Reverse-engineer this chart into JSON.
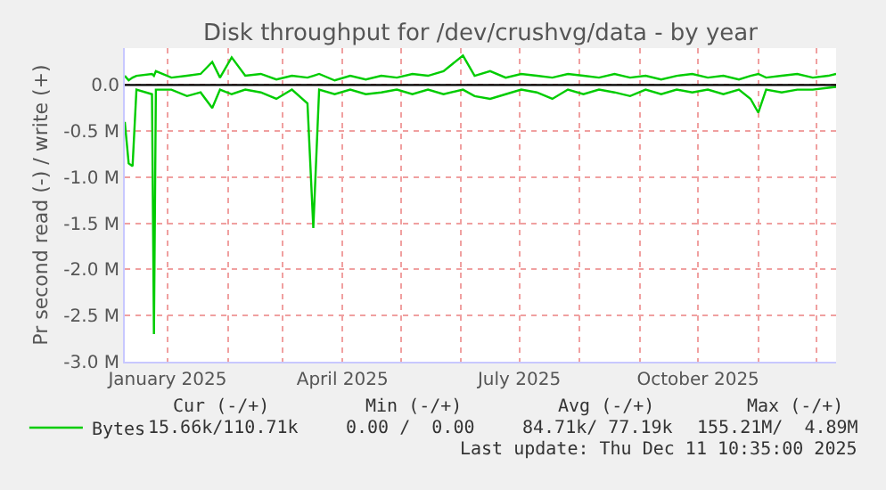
{
  "chart_data": {
    "type": "line",
    "title": "Disk throughput for /dev/crushvg/data - by year",
    "ylabel": "Pr second read (-) / write (+)",
    "x": [
      "2024-12-10",
      "2024-12-12",
      "2024-12-14",
      "2024-12-16",
      "2024-12-24",
      "2024-12-25",
      "2024-12-26",
      "2025-01-03",
      "2025-01-11",
      "2025-01-18",
      "2025-01-24",
      "2025-01-28",
      "2025-02-03",
      "2025-02-10",
      "2025-02-18",
      "2025-02-26",
      "2025-03-06",
      "2025-03-14",
      "2025-03-17",
      "2025-03-20",
      "2025-03-28",
      "2025-04-05",
      "2025-04-13",
      "2025-04-21",
      "2025-04-29",
      "2025-05-07",
      "2025-05-15",
      "2025-05-23",
      "2025-06-02",
      "2025-06-08",
      "2025-06-16",
      "2025-06-24",
      "2025-07-02",
      "2025-07-10",
      "2025-07-18",
      "2025-07-26",
      "2025-08-03",
      "2025-08-11",
      "2025-08-19",
      "2025-08-27",
      "2025-09-04",
      "2025-09-12",
      "2025-09-20",
      "2025-09-28",
      "2025-10-06",
      "2025-10-14",
      "2025-10-22",
      "2025-10-28",
      "2025-11-01",
      "2025-11-05",
      "2025-11-13",
      "2025-11-21",
      "2025-11-29",
      "2025-12-07",
      "2025-12-11"
    ],
    "series": [
      {
        "color": "#00cc00",
        "values": [
          -0.4,
          -0.85,
          -0.88,
          -0.05,
          -0.1,
          -2.7,
          -0.05,
          -0.05,
          -0.12,
          -0.08,
          -0.25,
          -0.05,
          -0.1,
          -0.05,
          -0.08,
          -0.15,
          -0.05,
          -0.2,
          -1.55,
          -0.05,
          -0.1,
          -0.05,
          -0.1,
          -0.08,
          -0.05,
          -0.1,
          -0.05,
          -0.1,
          -0.05,
          -0.12,
          -0.15,
          -0.1,
          -0.05,
          -0.08,
          -0.15,
          -0.05,
          -0.1,
          -0.05,
          -0.08,
          -0.12,
          -0.05,
          -0.1,
          -0.05,
          -0.08,
          -0.05,
          -0.1,
          -0.05,
          -0.15,
          -0.3,
          -0.05,
          -0.08,
          -0.05,
          -0.05,
          -0.03,
          -0.02
        ]
      },
      {
        "name": "Bytes",
        "color": "#00cc00",
        "values": [
          0.1,
          0.05,
          0.08,
          0.1,
          0.12,
          0.1,
          0.15,
          0.08,
          0.1,
          0.12,
          0.25,
          0.08,
          0.3,
          0.1,
          0.12,
          0.06,
          0.1,
          0.08,
          0.1,
          0.12,
          0.05,
          0.1,
          0.06,
          0.1,
          0.08,
          0.12,
          0.1,
          0.15,
          0.32,
          0.1,
          0.15,
          0.08,
          0.12,
          0.1,
          0.08,
          0.12,
          0.1,
          0.08,
          0.12,
          0.08,
          0.1,
          0.06,
          0.1,
          0.12,
          0.08,
          0.1,
          0.06,
          0.1,
          0.12,
          0.08,
          0.1,
          0.12,
          0.08,
          0.1,
          0.12
        ]
      }
    ],
    "xlim": [
      "2024-12-10",
      "2025-12-11"
    ],
    "xticks": [
      {
        "value": "2025-01-01",
        "label": "January 2025"
      },
      {
        "value": "2025-02-01",
        "label": null
      },
      {
        "value": "2025-03-01",
        "label": null
      },
      {
        "value": "2025-04-01",
        "label": "April 2025"
      },
      {
        "value": "2025-05-01",
        "label": null
      },
      {
        "value": "2025-06-01",
        "label": null
      },
      {
        "value": "2025-07-01",
        "label": "July 2025"
      },
      {
        "value": "2025-08-01",
        "label": null
      },
      {
        "value": "2025-09-01",
        "label": null
      },
      {
        "value": "2025-10-01",
        "label": "October 2025"
      },
      {
        "value": "2025-11-01",
        "label": null
      },
      {
        "value": "2025-12-01",
        "label": null
      }
    ],
    "ylim": [
      -3.0,
      0.4
    ],
    "yticks": [
      {
        "value": 0,
        "label": "0.0"
      },
      {
        "value": -0.5,
        "label": "-0.5 M"
      },
      {
        "value": -1.0,
        "label": "-1.0 M"
      },
      {
        "value": -1.5,
        "label": "-1.5 M"
      },
      {
        "value": -2.0,
        "label": "-2.0 M"
      },
      {
        "value": -2.5,
        "label": "-2.5 M"
      },
      {
        "value": -3.0,
        "label": "-3.0 M"
      }
    ],
    "ref_lines": [
      {
        "axis": "y",
        "value": 0,
        "color": "#000000",
        "line_style": "solid"
      }
    ],
    "grid": true,
    "legend": "bottom left",
    "line_style": "solid",
    "marker": "none",
    "annotations": [
      "Cur (-/+)",
      "Min (-/+)",
      "Avg (-/+)",
      "Max (-/+)",
      "15.66k/110.71k",
      "0.00 /  0.00",
      "84.71k/ 77.19k",
      "155.21M/  4.89M",
      "Last update: Thu Dec 11 10:35:00 2025"
    ]
  }
}
